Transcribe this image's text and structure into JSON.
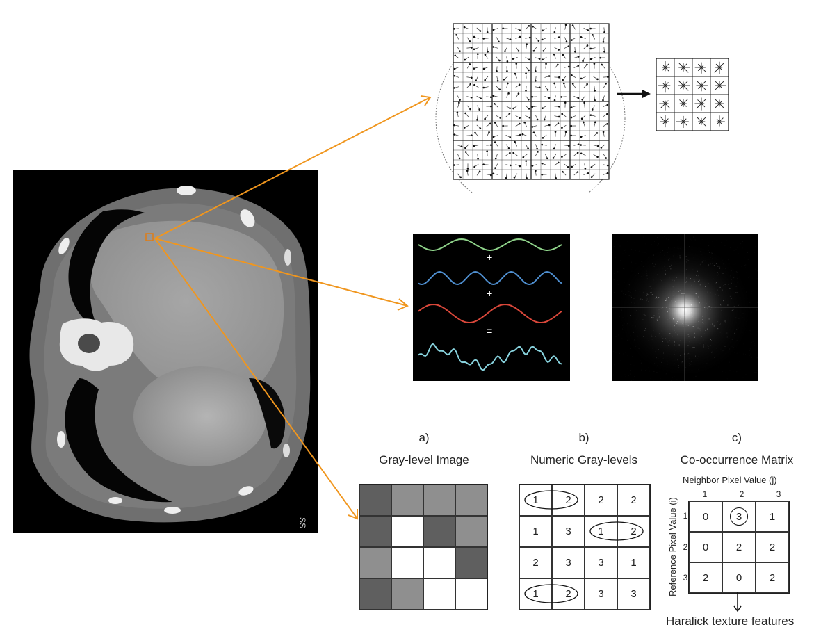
{
  "ct_image": {
    "corner_text": "SS"
  },
  "patch_tile": {
    "kind": "descriptor-grid"
  },
  "fourier_decomposition": {
    "plus1": "+",
    "plus2": "+",
    "equals": "=",
    "colors": {
      "green": "#8fd38a",
      "blue": "#4f8fd0",
      "red": "#d9473a",
      "cyan": "#88d3de"
    }
  },
  "panels": {
    "a": {
      "label": "a)",
      "title": "Gray-level Image",
      "shades": [
        [
          "#5f5f5f",
          "#8f8f8f",
          "#8f8f8f",
          "#8f8f8f"
        ],
        [
          "#5f5f5f",
          "#ffffff",
          "#5f5f5f",
          "#8f8f8f"
        ],
        [
          "#8f8f8f",
          "#ffffff",
          "#ffffff",
          "#5f5f5f"
        ],
        [
          "#5f5f5f",
          "#8f8f8f",
          "#ffffff",
          "#ffffff"
        ]
      ]
    },
    "b": {
      "label": "b)",
      "title": "Numeric Gray-levels",
      "values": [
        [
          "1",
          "2",
          "2",
          "2"
        ],
        [
          "1",
          "3",
          "1",
          "2"
        ],
        [
          "2",
          "3",
          "3",
          "1"
        ],
        [
          "1",
          "2",
          "3",
          "3"
        ]
      ]
    },
    "c": {
      "label": "c)",
      "title": "Co-occurrence Matrix",
      "col_axis_label": "Neighbor Pixel Value (j)",
      "row_axis_label": "Reference Pixel Value (i)",
      "col_headers": [
        "1",
        "2",
        "3"
      ],
      "row_headers": [
        "1",
        "2",
        "3"
      ],
      "values": [
        [
          "0",
          "3",
          "1"
        ],
        [
          "0",
          "2",
          "2"
        ],
        [
          "2",
          "0",
          "2"
        ]
      ],
      "output_label": "Haralick texture features"
    }
  },
  "arrow_color": "#f0961e"
}
